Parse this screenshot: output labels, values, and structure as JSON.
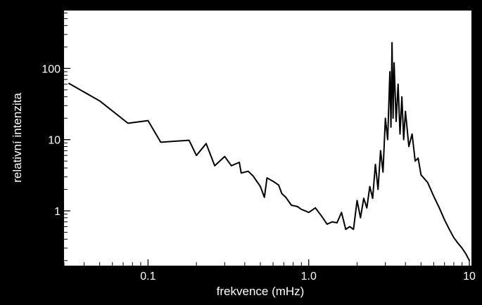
{
  "chart_data": {
    "type": "line",
    "xlabel": "frekvence (mHz)",
    "ylabel": "relativní intenzita",
    "xscale": "log",
    "yscale": "log",
    "xlim": [
      0.03,
      10.3
    ],
    "ylim": [
      0.17,
      650
    ],
    "x_ticks": [
      {
        "value": 0.1,
        "label": "0.1"
      },
      {
        "value": 1.0,
        "label": "1.0"
      },
      {
        "value": 10,
        "label": "10"
      }
    ],
    "y_ticks": [
      {
        "value": 1,
        "label": "1"
      },
      {
        "value": 10,
        "label": "10"
      },
      {
        "value": 100,
        "label": "100"
      }
    ],
    "grid": false,
    "colors": {
      "background": "#000000",
      "plot_area": "#ffffff",
      "line": "#000000",
      "text": "#ffffff"
    },
    "series": [
      {
        "values": [
          [
            0.032,
            62
          ],
          [
            0.05,
            35
          ],
          [
            0.075,
            17
          ],
          [
            0.1,
            18.5
          ],
          [
            0.12,
            9.2
          ],
          [
            0.18,
            9.8
          ],
          [
            0.2,
            6
          ],
          [
            0.23,
            8.8
          ],
          [
            0.26,
            4.3
          ],
          [
            0.3,
            5.8
          ],
          [
            0.33,
            4.3
          ],
          [
            0.37,
            4.8
          ],
          [
            0.38,
            3.4
          ],
          [
            0.42,
            3.6
          ],
          [
            0.45,
            3.1
          ],
          [
            0.5,
            2.2
          ],
          [
            0.53,
            1.55
          ],
          [
            0.55,
            2.9
          ],
          [
            0.6,
            2.6
          ],
          [
            0.65,
            2.3
          ],
          [
            0.68,
            1.75
          ],
          [
            0.72,
            1.55
          ],
          [
            0.78,
            1.2
          ],
          [
            0.85,
            1.15
          ],
          [
            0.9,
            1.05
          ],
          [
            0.95,
            1.0
          ],
          [
            1.0,
            0.95
          ],
          [
            1.1,
            1.1
          ],
          [
            1.2,
            0.85
          ],
          [
            1.3,
            0.65
          ],
          [
            1.4,
            0.7
          ],
          [
            1.5,
            0.68
          ],
          [
            1.6,
            0.95
          ],
          [
            1.7,
            0.55
          ],
          [
            1.8,
            0.6
          ],
          [
            1.9,
            0.55
          ],
          [
            2.0,
            1.4
          ],
          [
            2.1,
            0.8
          ],
          [
            2.2,
            1.5
          ],
          [
            2.3,
            1.1
          ],
          [
            2.4,
            2.2
          ],
          [
            2.5,
            1.5
          ],
          [
            2.6,
            4.5
          ],
          [
            2.7,
            2.0
          ],
          [
            2.8,
            7.0
          ],
          [
            2.9,
            3.5
          ],
          [
            3.0,
            20
          ],
          [
            3.1,
            10
          ],
          [
            3.2,
            90
          ],
          [
            3.25,
            15
          ],
          [
            3.3,
            230
          ],
          [
            3.35,
            20
          ],
          [
            3.4,
            120
          ],
          [
            3.5,
            18
          ],
          [
            3.6,
            60
          ],
          [
            3.7,
            12
          ],
          [
            3.8,
            40
          ],
          [
            3.9,
            10
          ],
          [
            4.0,
            25
          ],
          [
            4.2,
            8
          ],
          [
            4.4,
            12
          ],
          [
            4.6,
            5
          ],
          [
            4.8,
            5.5
          ],
          [
            5.0,
            3.2
          ],
          [
            5.5,
            2.5
          ],
          [
            6.0,
            1.6
          ],
          [
            6.5,
            1.1
          ],
          [
            7.0,
            0.75
          ],
          [
            7.5,
            0.55
          ],
          [
            8.0,
            0.42
          ],
          [
            8.5,
            0.35
          ],
          [
            9.0,
            0.3
          ],
          [
            9.5,
            0.25
          ],
          [
            10.0,
            0.2
          ]
        ]
      }
    ]
  }
}
